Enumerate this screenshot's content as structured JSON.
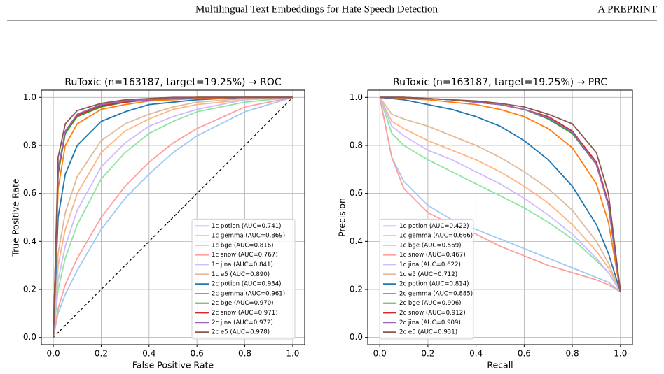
{
  "header": {
    "title": "Multilingual Text Embeddings for Hate Speech Detection",
    "right": "A PREPRINT"
  },
  "chart_data": [
    {
      "type": "line",
      "title": "RuToxic (n=163187, target=19.25%) → ROC",
      "x_label": "False Positive Rate",
      "y_label": "True Positive Rate",
      "xlim": [
        -0.05,
        1.05
      ],
      "ylim": [
        -0.03,
        1.03
      ],
      "xticks": [
        {
          "value": 0,
          "label": "0.0"
        },
        0.2,
        0.4,
        0.6,
        0.8,
        {
          "value": 1,
          "label": "1.0"
        }
      ],
      "yticks": [
        {
          "value": 0,
          "label": "0.0"
        },
        0.2,
        0.4,
        0.6,
        0.8,
        {
          "value": 1,
          "label": "1.0"
        }
      ],
      "grid": true,
      "legend": "lower right",
      "reference_line": {
        "x": [
          0,
          1
        ],
        "y": [
          0,
          1
        ],
        "color": "#000000"
      },
      "x": [
        0,
        0.02,
        0.05,
        0.1,
        0.2,
        0.3,
        0.4,
        0.5,
        0.6,
        0.8,
        1.0
      ],
      "series": [
        {
          "name": "1c potion (AUC=0.741)",
          "color": "#a1c9f4",
          "values": [
            0,
            0.1,
            0.18,
            0.28,
            0.45,
            0.58,
            0.68,
            0.77,
            0.84,
            0.94,
            1
          ]
        },
        {
          "name": "1c gemma (AUC=0.869)",
          "color": "#ffb482",
          "values": [
            0,
            0.3,
            0.45,
            0.6,
            0.77,
            0.86,
            0.91,
            0.95,
            0.97,
            0.99,
            1
          ]
        },
        {
          "name": "1c bge (AUC=0.816)",
          "color": "#8de5a1",
          "values": [
            0,
            0.2,
            0.33,
            0.47,
            0.66,
            0.77,
            0.85,
            0.9,
            0.94,
            0.98,
            1
          ]
        },
        {
          "name": "1c snow (AUC=0.767)",
          "color": "#ff9f9b",
          "values": [
            0,
            0.12,
            0.22,
            0.33,
            0.5,
            0.63,
            0.73,
            0.81,
            0.87,
            0.96,
            1
          ]
        },
        {
          "name": "1c jina (AUC=0.841)",
          "color": "#d0bbff",
          "values": [
            0,
            0.24,
            0.38,
            0.53,
            0.71,
            0.81,
            0.88,
            0.92,
            0.95,
            0.99,
            1
          ]
        },
        {
          "name": "1c e5 (AUC=0.890)",
          "color": "#debb9b",
          "values": [
            0,
            0.35,
            0.52,
            0.67,
            0.82,
            0.89,
            0.93,
            0.96,
            0.98,
            0.995,
            1
          ]
        },
        {
          "name": "2c potion (AUC=0.934)",
          "color": "#1f77b4",
          "values": [
            0,
            0.5,
            0.68,
            0.8,
            0.9,
            0.94,
            0.97,
            0.98,
            0.99,
            1,
            1
          ]
        },
        {
          "name": "2c gemma (AUC=0.961)",
          "color": "#ff7f0e",
          "values": [
            0,
            0.62,
            0.8,
            0.89,
            0.95,
            0.97,
            0.985,
            0.99,
            0.995,
            1,
            1
          ]
        },
        {
          "name": "2c bge (AUC=0.970)",
          "color": "#2ca02c",
          "values": [
            0,
            0.68,
            0.85,
            0.92,
            0.96,
            0.98,
            0.99,
            0.995,
            1,
            1,
            1
          ]
        },
        {
          "name": "2c snow (AUC=0.971)",
          "color": "#d62728",
          "values": [
            0,
            0.69,
            0.86,
            0.925,
            0.965,
            0.98,
            0.99,
            0.995,
            1,
            1,
            1
          ]
        },
        {
          "name": "2c jina (AUC=0.972)",
          "color": "#9467bd",
          "values": [
            0,
            0.7,
            0.86,
            0.93,
            0.97,
            0.985,
            0.99,
            0.995,
            1,
            1,
            1
          ]
        },
        {
          "name": "2c e5 (AUC=0.978)",
          "color": "#8c564b",
          "values": [
            0,
            0.75,
            0.89,
            0.945,
            0.975,
            0.99,
            0.995,
            1,
            1,
            1,
            1
          ]
        }
      ]
    },
    {
      "type": "line",
      "title": "RuToxic (n=163187, target=19.25%) → PRC",
      "x_label": "Recall",
      "y_label": "Precision",
      "xlim": [
        -0.05,
        1.05
      ],
      "ylim": [
        -0.03,
        1.03
      ],
      "xticks": [
        {
          "value": 0,
          "label": "0.0"
        },
        0.2,
        0.4,
        0.6,
        0.8,
        {
          "value": 1,
          "label": "1.0"
        }
      ],
      "yticks": [
        {
          "value": 0,
          "label": "0.0"
        },
        0.2,
        0.4,
        0.6,
        0.8,
        {
          "value": 1,
          "label": "1.0"
        }
      ],
      "grid": true,
      "legend": "lower left",
      "x": [
        0,
        0.05,
        0.1,
        0.2,
        0.3,
        0.4,
        0.5,
        0.6,
        0.7,
        0.8,
        0.9,
        0.95,
        1.0
      ],
      "series": [
        {
          "name": "1c potion (AUC=0.422)",
          "color": "#a1c9f4",
          "values": [
            1,
            0.75,
            0.65,
            0.55,
            0.49,
            0.45,
            0.41,
            0.37,
            0.33,
            0.29,
            0.25,
            0.23,
            0.19
          ]
        },
        {
          "name": "1c gemma (AUC=0.666)",
          "color": "#ffb482",
          "values": [
            1,
            0.9,
            0.87,
            0.82,
            0.78,
            0.74,
            0.69,
            0.63,
            0.56,
            0.47,
            0.36,
            0.29,
            0.19
          ]
        },
        {
          "name": "1c bge (AUC=0.569)",
          "color": "#8de5a1",
          "values": [
            1,
            0.85,
            0.8,
            0.74,
            0.69,
            0.64,
            0.59,
            0.54,
            0.48,
            0.41,
            0.32,
            0.27,
            0.19
          ]
        },
        {
          "name": "1c snow (AUC=0.467)",
          "color": "#ff9f9b",
          "values": [
            1,
            0.75,
            0.62,
            0.52,
            0.47,
            0.43,
            0.38,
            0.34,
            0.3,
            0.27,
            0.24,
            0.22,
            0.19
          ]
        },
        {
          "name": "1c jina (AUC=0.622)",
          "color": "#d0bbff",
          "values": [
            1,
            0.88,
            0.84,
            0.78,
            0.74,
            0.69,
            0.64,
            0.58,
            0.51,
            0.43,
            0.33,
            0.27,
            0.19
          ]
        },
        {
          "name": "1c e5 (AUC=0.712)",
          "color": "#debb9b",
          "values": [
            1,
            0.93,
            0.91,
            0.88,
            0.84,
            0.8,
            0.75,
            0.69,
            0.62,
            0.53,
            0.4,
            0.31,
            0.19
          ]
        },
        {
          "name": "2c potion (AUC=0.814)",
          "color": "#1f77b4",
          "values": [
            1,
            0.995,
            0.99,
            0.97,
            0.95,
            0.92,
            0.88,
            0.82,
            0.74,
            0.63,
            0.47,
            0.35,
            0.19
          ]
        },
        {
          "name": "2c gemma (AUC=0.885)",
          "color": "#ff7f0e",
          "values": [
            1,
            1,
            0.995,
            0.99,
            0.98,
            0.97,
            0.95,
            0.92,
            0.87,
            0.79,
            0.64,
            0.48,
            0.19
          ]
        },
        {
          "name": "2c bge (AUC=0.906)",
          "color": "#2ca02c",
          "values": [
            1,
            1,
            1,
            0.995,
            0.99,
            0.98,
            0.97,
            0.95,
            0.91,
            0.85,
            0.72,
            0.55,
            0.19
          ]
        },
        {
          "name": "2c snow (AUC=0.912)",
          "color": "#d62728",
          "values": [
            1,
            1,
            1,
            0.995,
            0.99,
            0.98,
            0.97,
            0.95,
            0.92,
            0.86,
            0.73,
            0.56,
            0.19
          ]
        },
        {
          "name": "2c jina (AUC=0.909)",
          "color": "#9467bd",
          "values": [
            1,
            1,
            1,
            0.995,
            0.99,
            0.98,
            0.97,
            0.95,
            0.915,
            0.855,
            0.72,
            0.55,
            0.19
          ]
        },
        {
          "name": "2c e5 (AUC=0.931)",
          "color": "#8c564b",
          "values": [
            1,
            1,
            1,
            0.995,
            0.99,
            0.985,
            0.975,
            0.96,
            0.93,
            0.89,
            0.77,
            0.6,
            0.19
          ]
        }
      ]
    }
  ]
}
